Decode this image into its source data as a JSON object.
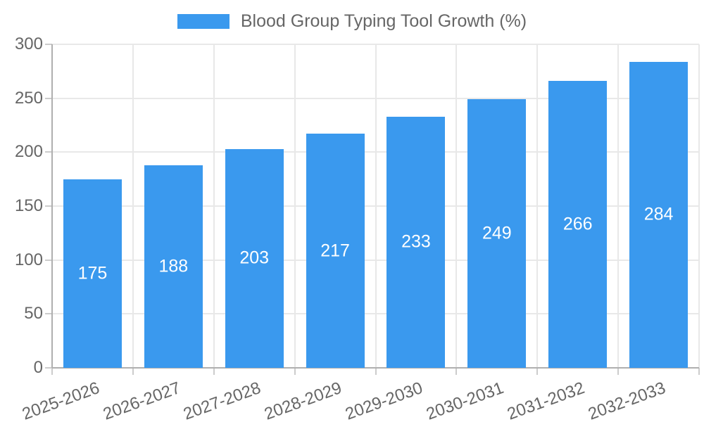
{
  "chart_data": {
    "type": "bar",
    "title": "Blood Group Typing Tool Growth (%)",
    "categories": [
      "2025-2026",
      "2026-2027",
      "2027-2028",
      "2028-2029",
      "2029-2030",
      "2030-2031",
      "2031-2032",
      "2032-2033"
    ],
    "values": [
      175,
      188,
      203,
      217,
      233,
      249,
      266,
      284
    ],
    "xlabel": "",
    "ylabel": "",
    "ylim": [
      0,
      300
    ],
    "yticks": [
      0,
      50,
      100,
      150,
      200,
      250,
      300
    ],
    "grid": true,
    "legend_position": "top",
    "colors": {
      "bar": "#3A99EE",
      "value_label": "#FFFFFF",
      "axis_text": "#666666",
      "gridline": "#E8E8E8",
      "axis_line": "#AFAFAF",
      "tick_mark": "#CCCCCC"
    }
  }
}
